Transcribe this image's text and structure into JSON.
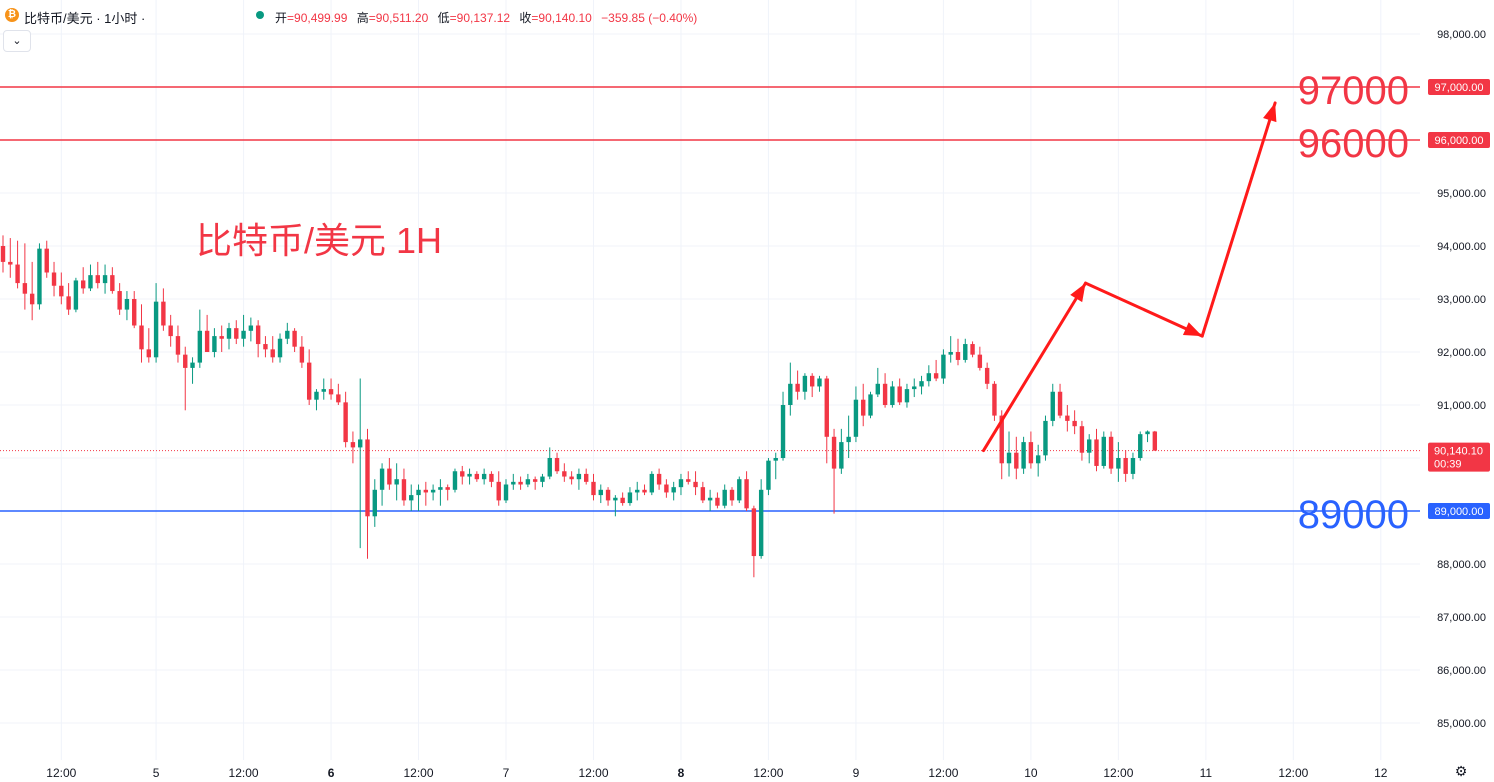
{
  "header": {
    "symbol_title": "比特币/美元 · 1小时 ·",
    "coin_icon": "bitcoin-icon",
    "ohlc": {
      "open_label": "开",
      "open": "=90,499.99",
      "high_label": "高",
      "high": "=90,511.20",
      "low_label": "低",
      "low": "=90,137.12",
      "close_label": "收",
      "close": "=90,140.10",
      "change": "−359.85 (−0.40%)"
    },
    "collapse_icon": "chevron-down-icon"
  },
  "colors": {
    "up": "#089981",
    "down": "#f23645",
    "resistance": "#f23645",
    "support": "#2962ff",
    "arrow": "#ff1a1a",
    "title_text": "#f23645",
    "grid": "#f0f3fa",
    "axis_text": "#131722"
  },
  "chart_data": {
    "type": "candlestick",
    "annotation_title": "比特币/美元 1H",
    "ylim": [
      84500,
      98600
    ],
    "y_ticks": [
      85000,
      86000,
      87000,
      88000,
      89000,
      90000,
      91000,
      92000,
      93000,
      94000,
      95000,
      96000,
      97000,
      98000
    ],
    "y_tick_labels": [
      "85,000.00",
      "86,000.00",
      "87,000.00",
      "88,000.00",
      "89,000.00",
      "",
      "91,000.00",
      "92,000.00",
      "93,000.00",
      "94,000.00",
      "95,000.00",
      "",
      "",
      "98,000.00"
    ],
    "x_ticks": [
      {
        "bar": 8,
        "label": "12:00",
        "bold": false
      },
      {
        "bar": 21,
        "label": "5",
        "bold": false
      },
      {
        "bar": 33,
        "label": "12:00",
        "bold": false
      },
      {
        "bar": 45,
        "label": "6",
        "bold": true
      },
      {
        "bar": 57,
        "label": "12:00",
        "bold": false
      },
      {
        "bar": 69,
        "label": "7",
        "bold": false
      },
      {
        "bar": 81,
        "label": "12:00",
        "bold": false
      },
      {
        "bar": 93,
        "label": "8",
        "bold": true
      },
      {
        "bar": 105,
        "label": "12:00",
        "bold": false
      },
      {
        "bar": 117,
        "label": "9",
        "bold": false
      },
      {
        "bar": 129,
        "label": "12:00",
        "bold": false
      },
      {
        "bar": 141,
        "label": "10",
        "bold": false
      },
      {
        "bar": 153,
        "label": "12:00",
        "bold": false
      },
      {
        "bar": 165,
        "label": "11",
        "bold": false
      },
      {
        "bar": 177,
        "label": "12:00",
        "bold": false
      },
      {
        "bar": 189,
        "label": "12",
        "bold": false
      }
    ],
    "last_price": {
      "value": 90140.1,
      "label": "90,140.10",
      "countdown": "00:39"
    },
    "levels": [
      {
        "value": 97000,
        "big_label": "97000",
        "axis_label": "97,000.00",
        "kind": "resistance"
      },
      {
        "value": 96000,
        "big_label": "96000",
        "axis_label": "96,000.00",
        "kind": "resistance"
      },
      {
        "value": 89000,
        "big_label": "89000",
        "axis_label": "89,000.00",
        "kind": "support"
      }
    ],
    "projection_path": [
      {
        "bar": 134.5,
        "price": 90140
      },
      {
        "bar": 148.5,
        "price": 93300
      },
      {
        "bar": 164.5,
        "price": 92300
      },
      {
        "bar": 174.5,
        "price": 96700
      }
    ],
    "candles": [
      [
        94000,
        94200,
        93500,
        93700
      ],
      [
        93700,
        94150,
        93400,
        93650
      ],
      [
        93650,
        94100,
        93200,
        93300
      ],
      [
        93300,
        94050,
        92800,
        93100
      ],
      [
        93100,
        93700,
        92600,
        92900
      ],
      [
        92900,
        94050,
        92800,
        93950
      ],
      [
        93950,
        94100,
        93400,
        93500
      ],
      [
        93500,
        93700,
        93050,
        93250
      ],
      [
        93250,
        93500,
        92900,
        93050
      ],
      [
        93050,
        93300,
        92700,
        92800
      ],
      [
        92800,
        93400,
        92750,
        93350
      ],
      [
        93350,
        93600,
        93100,
        93200
      ],
      [
        93200,
        93650,
        93150,
        93450
      ],
      [
        93450,
        93700,
        93200,
        93300
      ],
      [
        93300,
        93650,
        93100,
        93450
      ],
      [
        93450,
        93600,
        93100,
        93150
      ],
      [
        93150,
        93300,
        92700,
        92800
      ],
      [
        92800,
        93150,
        92600,
        93000
      ],
      [
        93000,
        93150,
        92450,
        92500
      ],
      [
        92500,
        92900,
        91800,
        92050
      ],
      [
        92050,
        92450,
        91800,
        91900
      ],
      [
        91900,
        93300,
        91800,
        92950
      ],
      [
        92950,
        93200,
        92400,
        92500
      ],
      [
        92500,
        92700,
        92100,
        92300
      ],
      [
        92300,
        92500,
        91800,
        91950
      ],
      [
        91950,
        92100,
        90900,
        91700
      ],
      [
        91700,
        91900,
        91400,
        91800
      ],
      [
        91800,
        92800,
        91700,
        92400
      ],
      [
        92400,
        92700,
        92000,
        92000
      ],
      [
        92000,
        92450,
        91900,
        92300
      ],
      [
        92300,
        92500,
        92000,
        92250
      ],
      [
        92250,
        92550,
        92050,
        92450
      ],
      [
        92450,
        92600,
        92150,
        92250
      ],
      [
        92250,
        92700,
        92100,
        92400
      ],
      [
        92400,
        92650,
        92200,
        92500
      ],
      [
        92500,
        92600,
        91900,
        92150
      ],
      [
        92150,
        92300,
        91900,
        92050
      ],
      [
        92050,
        92300,
        91800,
        91900
      ],
      [
        91900,
        92350,
        91800,
        92250
      ],
      [
        92250,
        92550,
        92150,
        92400
      ],
      [
        92400,
        92450,
        92000,
        92100
      ],
      [
        92100,
        92300,
        91700,
        91800
      ],
      [
        91800,
        92050,
        91000,
        91100
      ],
      [
        91100,
        91300,
        90900,
        91250
      ],
      [
        91250,
        91500,
        91100,
        91300
      ],
      [
        91300,
        91500,
        91100,
        91200
      ],
      [
        91200,
        91400,
        91000,
        91050
      ],
      [
        91050,
        91250,
        90200,
        90300
      ],
      [
        90300,
        90500,
        89900,
        90200
      ],
      [
        90200,
        91500,
        88300,
        90350
      ],
      [
        90350,
        90550,
        88100,
        88900
      ],
      [
        88900,
        89600,
        88700,
        89400
      ],
      [
        89400,
        89900,
        89100,
        89800
      ],
      [
        89800,
        90000,
        89400,
        89500
      ],
      [
        89500,
        89900,
        89200,
        89600
      ],
      [
        89600,
        89800,
        89100,
        89200
      ],
      [
        89200,
        89500,
        89000,
        89300
      ],
      [
        89300,
        89500,
        89000,
        89400
      ],
      [
        89400,
        89550,
        89100,
        89350
      ],
      [
        89350,
        89500,
        89200,
        89400
      ],
      [
        89400,
        89600,
        89100,
        89450
      ],
      [
        89450,
        89500,
        89200,
        89400
      ],
      [
        89400,
        89800,
        89350,
        89750
      ],
      [
        89750,
        89850,
        89500,
        89650
      ],
      [
        89650,
        89800,
        89500,
        89700
      ],
      [
        89700,
        89750,
        89550,
        89600
      ],
      [
        89600,
        89800,
        89500,
        89700
      ],
      [
        89700,
        89750,
        89450,
        89550
      ],
      [
        89550,
        89750,
        89100,
        89200
      ],
      [
        89200,
        89600,
        89150,
        89500
      ],
      [
        89500,
        89700,
        89400,
        89550
      ],
      [
        89550,
        89650,
        89400,
        89500
      ],
      [
        89500,
        89700,
        89450,
        89600
      ],
      [
        89600,
        89650,
        89400,
        89550
      ],
      [
        89550,
        89700,
        89450,
        89650
      ],
      [
        89650,
        90200,
        89600,
        90000
      ],
      [
        90000,
        90100,
        89700,
        89750
      ],
      [
        89750,
        89900,
        89550,
        89650
      ],
      [
        89650,
        89750,
        89500,
        89600
      ],
      [
        89600,
        89800,
        89400,
        89700
      ],
      [
        89700,
        89800,
        89500,
        89550
      ],
      [
        89550,
        89700,
        89200,
        89300
      ],
      [
        89300,
        89500,
        89150,
        89400
      ],
      [
        89400,
        89450,
        89100,
        89200
      ],
      [
        89200,
        89300,
        88900,
        89250
      ],
      [
        89250,
        89350,
        89100,
        89150
      ],
      [
        89150,
        89450,
        89100,
        89350
      ],
      [
        89350,
        89550,
        89200,
        89400
      ],
      [
        89400,
        89500,
        89300,
        89350
      ],
      [
        89350,
        89750,
        89300,
        89700
      ],
      [
        89700,
        89800,
        89400,
        89500
      ],
      [
        89500,
        89600,
        89250,
        89350
      ],
      [
        89350,
        89550,
        89200,
        89450
      ],
      [
        89450,
        89700,
        89300,
        89600
      ],
      [
        89600,
        89750,
        89500,
        89550
      ],
      [
        89550,
        89750,
        89300,
        89450
      ],
      [
        89450,
        89550,
        89150,
        89200
      ],
      [
        89200,
        89400,
        89000,
        89250
      ],
      [
        89250,
        89350,
        89050,
        89100
      ],
      [
        89100,
        89500,
        89050,
        89400
      ],
      [
        89400,
        89450,
        89100,
        89200
      ],
      [
        89200,
        89650,
        89150,
        89600
      ],
      [
        89600,
        89750,
        89000,
        89050
      ],
      [
        89050,
        89100,
        87750,
        88150
      ],
      [
        88150,
        89600,
        88100,
        89400
      ],
      [
        89400,
        90000,
        89300,
        89950
      ],
      [
        89950,
        90100,
        89600,
        90000
      ],
      [
        90000,
        91250,
        89950,
        91000
      ],
      [
        91000,
        91800,
        90800,
        91400
      ],
      [
        91400,
        91650,
        91100,
        91250
      ],
      [
        91250,
        91600,
        91100,
        91550
      ],
      [
        91550,
        91600,
        91150,
        91350
      ],
      [
        91350,
        91550,
        91250,
        91500
      ],
      [
        91500,
        91550,
        89900,
        90400
      ],
      [
        90400,
        90550,
        88950,
        89800
      ],
      [
        89800,
        90550,
        89700,
        90300
      ],
      [
        90300,
        90800,
        90000,
        90400
      ],
      [
        90400,
        91350,
        90300,
        91100
      ],
      [
        91100,
        91400,
        90600,
        90800
      ],
      [
        90800,
        91250,
        90750,
        91200
      ],
      [
        91200,
        91700,
        91150,
        91400
      ],
      [
        91400,
        91600,
        90950,
        91000
      ],
      [
        91000,
        91450,
        90950,
        91350
      ],
      [
        91350,
        91500,
        91000,
        91050
      ],
      [
        91050,
        91400,
        90950,
        91300
      ],
      [
        91300,
        91500,
        91150,
        91350
      ],
      [
        91350,
        91550,
        91200,
        91450
      ],
      [
        91450,
        91750,
        91350,
        91600
      ],
      [
        91600,
        91850,
        91450,
        91500
      ],
      [
        91500,
        92050,
        91400,
        91950
      ],
      [
        91950,
        92300,
        91800,
        92000
      ],
      [
        92000,
        92250,
        91750,
        91850
      ],
      [
        91850,
        92250,
        91800,
        92150
      ],
      [
        92150,
        92200,
        91900,
        91950
      ],
      [
        91950,
        92100,
        91650,
        91700
      ],
      [
        91700,
        91800,
        91300,
        91400
      ],
      [
        91400,
        91450,
        90700,
        90800
      ],
      [
        90800,
        90900,
        89600,
        89900
      ],
      [
        89900,
        90500,
        89650,
        90100
      ],
      [
        90100,
        90400,
        89600,
        89800
      ],
      [
        89800,
        90400,
        89700,
        90300
      ],
      [
        90300,
        90500,
        89800,
        89900
      ],
      [
        89900,
        90250,
        89650,
        90050
      ],
      [
        90050,
        90800,
        89950,
        90700
      ],
      [
        90700,
        91400,
        90600,
        91250
      ],
      [
        91250,
        91400,
        90750,
        90800
      ],
      [
        90800,
        91000,
        90500,
        90700
      ],
      [
        90700,
        90900,
        90450,
        90600
      ],
      [
        90600,
        90700,
        89950,
        90100
      ],
      [
        90100,
        90450,
        89900,
        90350
      ],
      [
        90350,
        90550,
        89750,
        89850
      ],
      [
        89850,
        90500,
        89800,
        90400
      ],
      [
        90400,
        90500,
        89700,
        89800
      ],
      [
        89800,
        90300,
        89550,
        90000
      ],
      [
        90000,
        90150,
        89550,
        89700
      ],
      [
        89700,
        90100,
        89600,
        90000
      ],
      [
        90000,
        90500,
        89950,
        90450
      ],
      [
        90450,
        90520,
        90300,
        90500
      ],
      [
        90500,
        90511,
        90137,
        90140
      ]
    ]
  }
}
